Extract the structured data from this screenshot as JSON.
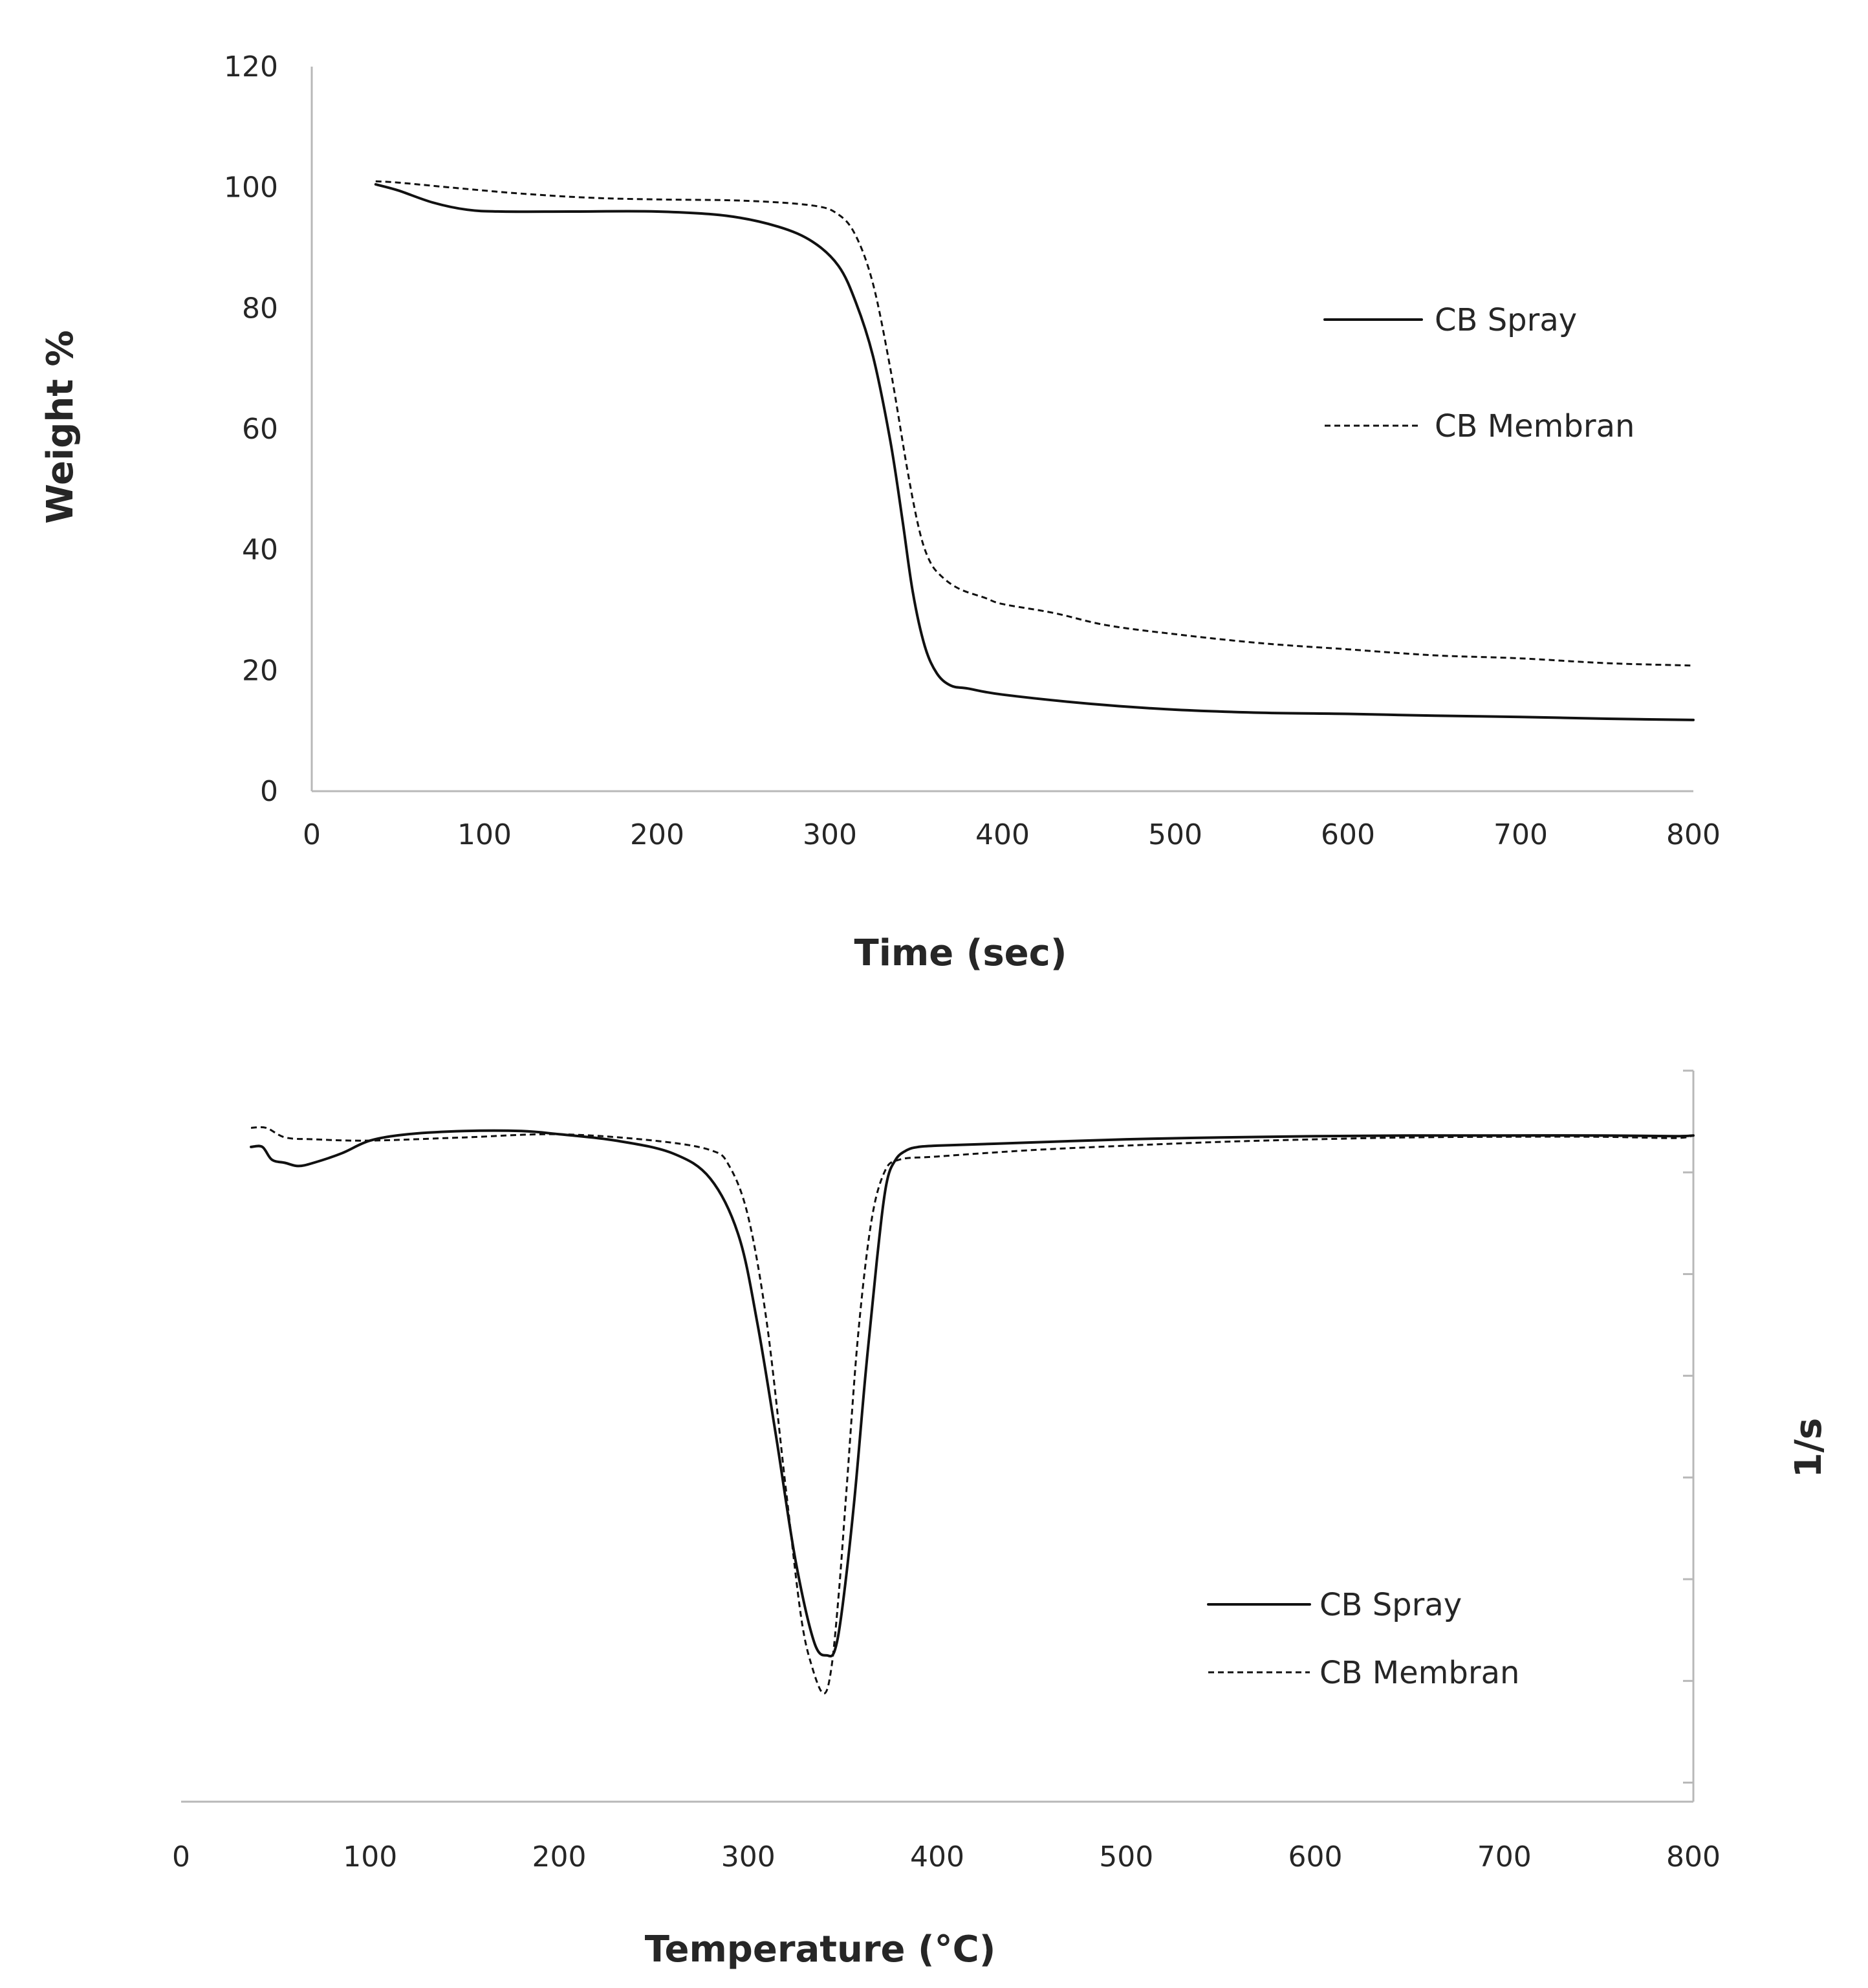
{
  "chart_data": [
    {
      "type": "line",
      "title": "",
      "xlabel": "Time (sec)",
      "ylabel": "Weight %",
      "xlim": [
        0,
        800
      ],
      "ylim": [
        0,
        120
      ],
      "x_ticks": [
        0,
        100,
        200,
        300,
        400,
        500,
        600,
        700,
        800
      ],
      "y_ticks": [
        0,
        20,
        40,
        60,
        80,
        100,
        120
      ],
      "x_tick_labels": [
        "0",
        "100",
        "200",
        "300",
        "400",
        "500",
        "600",
        "700",
        "800"
      ],
      "y_tick_labels": [
        "0",
        "20",
        "40",
        "60",
        "80",
        "100",
        "120"
      ],
      "grid": false,
      "legend_position": "right",
      "series": [
        {
          "name": "CB Spray",
          "style": "solid",
          "color": "#111111",
          "x": [
            37,
            50,
            70,
            90,
            110,
            150,
            200,
            240,
            270,
            290,
            305,
            315,
            325,
            335,
            342,
            348,
            355,
            362,
            370,
            380,
            400,
            450,
            500,
            550,
            600,
            650,
            700,
            750,
            800
          ],
          "y": [
            100.5,
            99.5,
            97.5,
            96.3,
            96,
            96,
            96,
            95.3,
            93.5,
            91,
            87,
            81,
            72,
            58,
            45,
            33,
            24,
            19.5,
            17.5,
            17,
            16,
            14.5,
            13.5,
            13,
            12.8,
            12.5,
            12.3,
            12,
            11.8
          ]
        },
        {
          "name": "CB Membran",
          "style": "dashed",
          "color": "#111111",
          "x": [
            37,
            50,
            80,
            120,
            160,
            200,
            250,
            290,
            305,
            315,
            325,
            335,
            345,
            352,
            358,
            365,
            375,
            390,
            400,
            430,
            460,
            500,
            550,
            600,
            650,
            700,
            750,
            800
          ],
          "y": [
            101,
            100.8,
            100,
            99,
            98.3,
            98,
            97.8,
            97,
            95.5,
            92,
            84,
            70,
            53,
            43,
            38,
            35.5,
            33.5,
            32,
            31,
            29.5,
            27.5,
            26,
            24.5,
            23.5,
            22.5,
            22,
            21.2,
            20.8
          ]
        }
      ]
    },
    {
      "type": "line",
      "title": "",
      "xlabel": "Temperature (°C)",
      "ylabel": "1/s",
      "xlim": [
        0,
        800
      ],
      "ylim": [
        -1.05,
        0.1
      ],
      "x_ticks": [
        0,
        100,
        200,
        300,
        400,
        500,
        600,
        700,
        800
      ],
      "x_tick_labels": [
        "0",
        "100",
        "200",
        "300",
        "400",
        "500",
        "600",
        "700",
        "800"
      ],
      "y_ticks": [
        0.1,
        -0.06,
        -0.22,
        -0.38,
        -0.54,
        -0.7,
        -0.86,
        -1.02,
        -1.05
      ],
      "y_tick_labels_shown": false,
      "grid": false,
      "legend_position": "bottom-right",
      "series": [
        {
          "name": "CB Spray",
          "style": "solid",
          "color": "#111111",
          "x": [
            37,
            43,
            48,
            55,
            62,
            70,
            85,
            100,
            120,
            150,
            180,
            200,
            230,
            260,
            280,
            295,
            305,
            315,
            325,
            335,
            342,
            346,
            350,
            356,
            362,
            368,
            373,
            378,
            384,
            390,
            400,
            430,
            500,
            550,
            600,
            650,
            700,
            750,
            790,
            800
          ],
          "y": [
            -0.02,
            -0.02,
            -0.04,
            -0.045,
            -0.05,
            -0.045,
            -0.03,
            -0.01,
            0,
            0.005,
            0.005,
            0.0,
            -0.01,
            -0.03,
            -0.07,
            -0.16,
            -0.3,
            -0.48,
            -0.67,
            -0.8,
            -0.82,
            -0.81,
            -0.74,
            -0.58,
            -0.38,
            -0.2,
            -0.08,
            -0.04,
            -0.025,
            -0.02,
            -0.018,
            -0.015,
            -0.008,
            -0.005,
            -0.003,
            -0.002,
            -0.002,
            -0.002,
            -0.003,
            -0.002
          ]
        },
        {
          "name": "CB Membran",
          "style": "dashed",
          "color": "#111111",
          "x": [
            37,
            45,
            55,
            70,
            100,
            150,
            200,
            250,
            280,
            290,
            300,
            310,
            320,
            328,
            334,
            340,
            344,
            348,
            352,
            358,
            365,
            372,
            380,
            400,
            450,
            500,
            550,
            600,
            650,
            700,
            750,
            790,
            800
          ],
          "y": [
            0.01,
            0.01,
            -0.005,
            -0.008,
            -0.01,
            -0.005,
            0.0,
            -0.01,
            -0.025,
            -0.05,
            -0.13,
            -0.3,
            -0.56,
            -0.76,
            -0.84,
            -0.88,
            -0.84,
            -0.72,
            -0.56,
            -0.32,
            -0.14,
            -0.06,
            -0.04,
            -0.035,
            -0.025,
            -0.018,
            -0.012,
            -0.008,
            -0.005,
            -0.004,
            -0.004,
            -0.006,
            -0.002
          ]
        }
      ]
    }
  ]
}
